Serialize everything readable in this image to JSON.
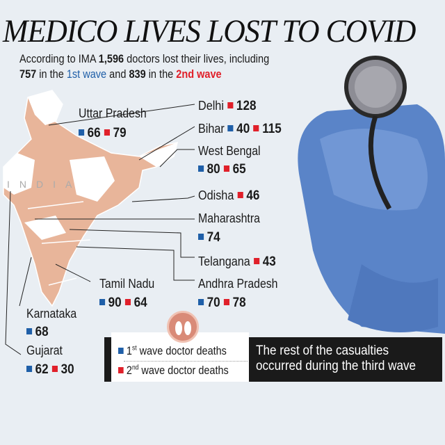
{
  "title": "MEDICO LIVES LOST TO COVID",
  "intro": {
    "p1": "According to IMA ",
    "total": "1,596",
    "p2": " doctors lost their lives, including",
    "w1": "757",
    "p3": " in the ",
    "w1label": "1st wave",
    "p4": " and ",
    "w2": "839",
    "p5": " in the ",
    "w2label": "2nd wave"
  },
  "map_label": "INDIA",
  "states": {
    "up": {
      "name": "Uttar Pradesh",
      "w1": "66",
      "w2": "79"
    },
    "delhi": {
      "name": "Delhi",
      "w2": "128"
    },
    "bihar": {
      "name": "Bihar",
      "w1": "40",
      "w2": "115"
    },
    "wb": {
      "name": "West Bengal",
      "w1": "80",
      "w2": "65"
    },
    "odisha": {
      "name": "Odisha",
      "w2": "46"
    },
    "mh": {
      "name": "Maharashtra",
      "w1": "74"
    },
    "tg": {
      "name": "Telangana",
      "w2": "43"
    },
    "ap": {
      "name": "Andhra Pradesh",
      "w1": "70",
      "w2": "78"
    },
    "tn": {
      "name": "Tamil Nadu",
      "w1": "90",
      "w2": "64"
    },
    "ka": {
      "name": "Karnataka",
      "w1": "68"
    },
    "gj": {
      "name": "Gujarat",
      "w1": "62",
      "w2": "30"
    }
  },
  "legend": {
    "w1_sup_num": "1",
    "w1_sup": "st",
    "w1_text": " wave doctor deaths",
    "w2_sup_num": "2",
    "w2_sup": "nd",
    "w2_text": " wave doctor deaths"
  },
  "note": {
    "line1": "The rest of the casualties",
    "line2": "occurred during the third wave"
  },
  "colors": {
    "wave1": "#1f5fa8",
    "wave2": "#e0202a",
    "map": "#e8b59a"
  }
}
